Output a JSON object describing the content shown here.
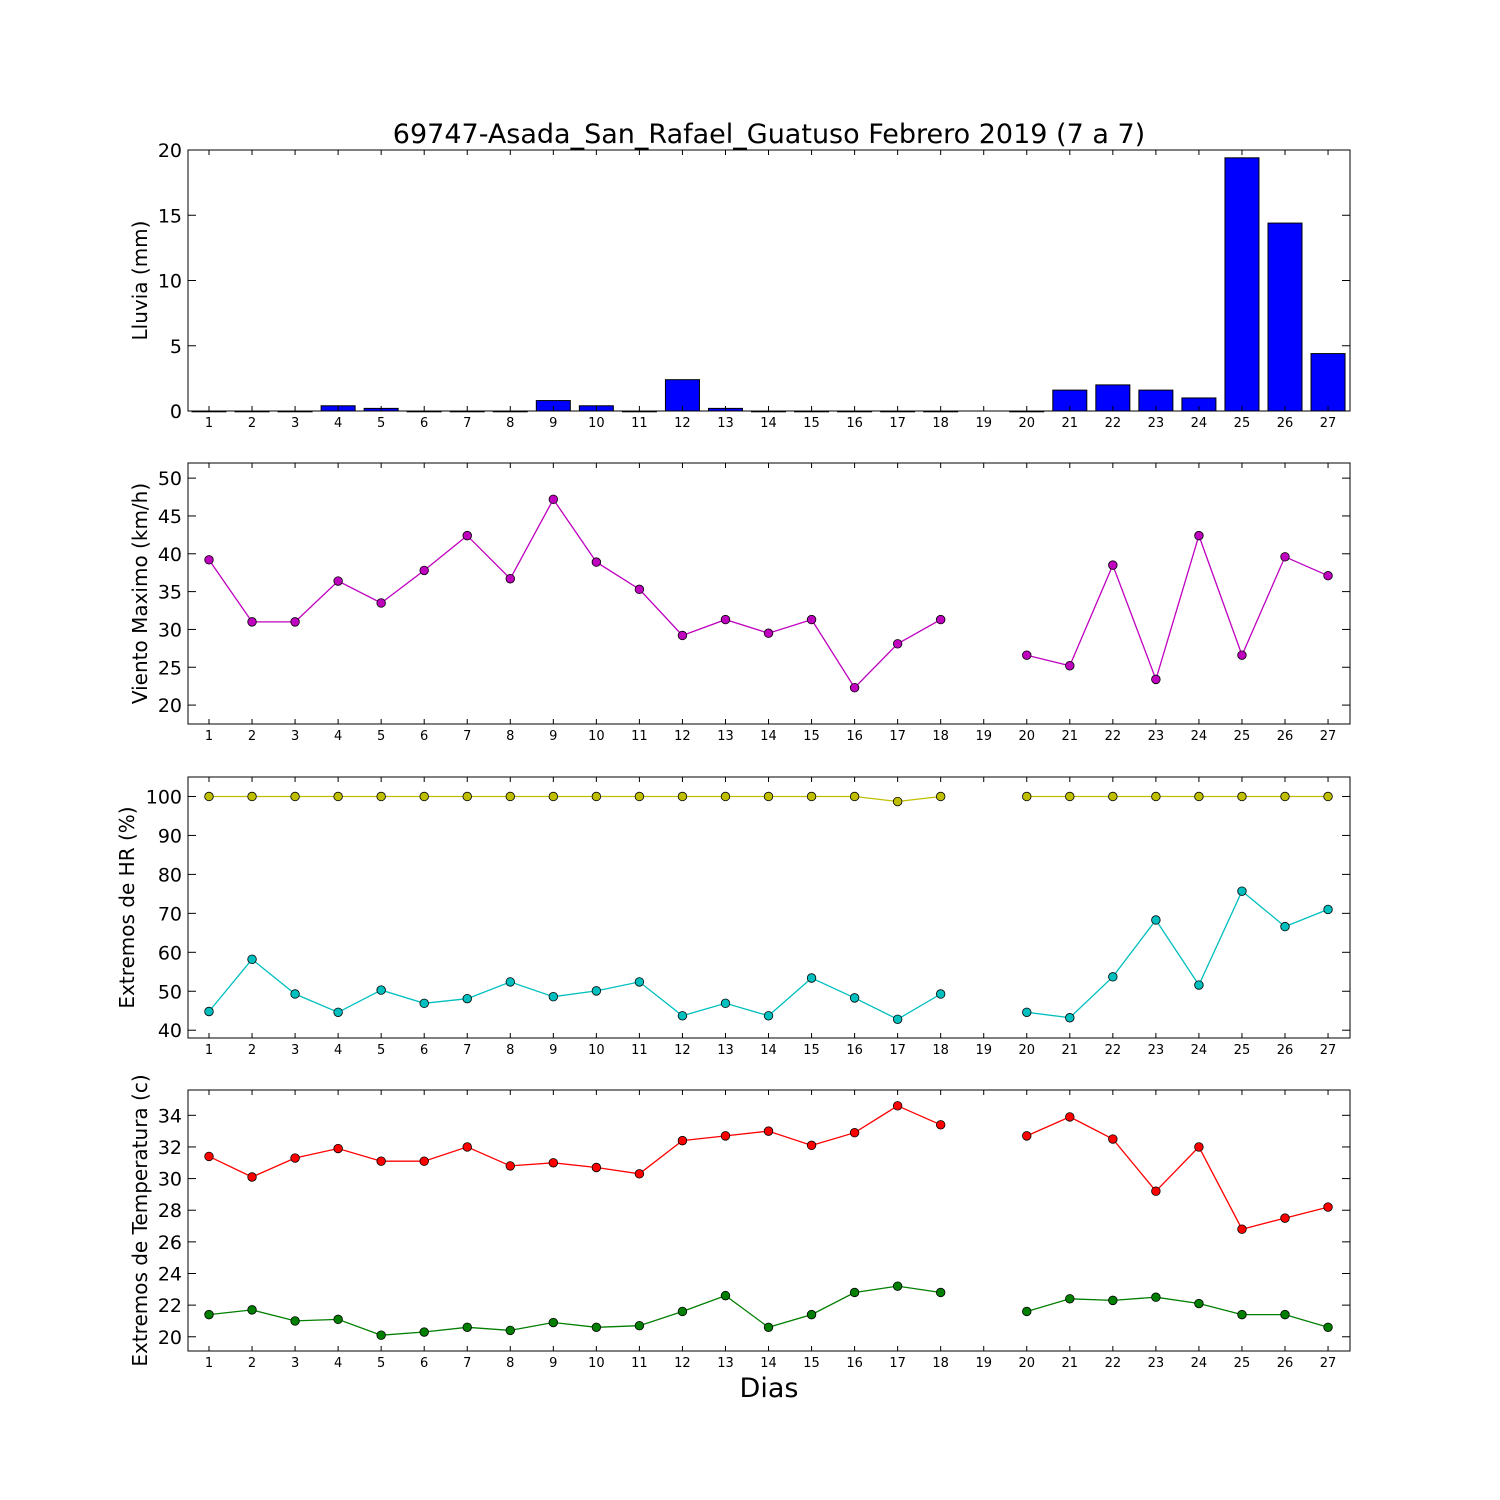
{
  "title": "69747-Asada_San_Rafael_Guatuso Febrero 2019  (7 a 7)",
  "xlabel": "Dias",
  "colors": {
    "lluvia": "#0000ff",
    "viento": "#bf00bf",
    "hr_max": "#bfbf00",
    "hr_min": "#00bfbf",
    "temp_max": "#ff0000",
    "temp_min": "#007f00"
  },
  "chart_data": [
    {
      "type": "bar",
      "ylabel": "Lluvia (mm)",
      "ylim": [
        0,
        20
      ],
      "yticks": [
        0,
        5,
        10,
        15,
        20
      ],
      "categories": [
        "1",
        "2",
        "3",
        "4",
        "5",
        "6",
        "7",
        "8",
        "9",
        "10",
        "11",
        "12",
        "13",
        "14",
        "15",
        "16",
        "17",
        "18",
        "19",
        "20",
        "21",
        "22",
        "23",
        "24",
        "25",
        "26",
        "27"
      ],
      "series": [
        {
          "values": [
            0,
            0,
            0,
            0.4,
            0.2,
            0,
            0,
            0,
            0.8,
            0.4,
            0,
            2.4,
            0.2,
            0,
            0,
            0,
            0,
            0,
            null,
            0,
            1.6,
            2.0,
            1.6,
            1.0,
            19.4,
            14.4,
            4.4
          ]
        }
      ]
    },
    {
      "type": "line",
      "ylabel": "Viento Maximo (km/h)",
      "ylim": [
        17.5,
        52
      ],
      "yticks": [
        20,
        25,
        30,
        35,
        40,
        45,
        50
      ],
      "categories": [
        "1",
        "2",
        "3",
        "4",
        "5",
        "6",
        "7",
        "8",
        "9",
        "10",
        "11",
        "12",
        "13",
        "14",
        "15",
        "16",
        "17",
        "18",
        "19",
        "20",
        "21",
        "22",
        "23",
        "24",
        "25",
        "26",
        "27"
      ],
      "series": [
        {
          "values": [
            39.2,
            31.0,
            31.0,
            36.4,
            33.5,
            37.8,
            42.4,
            36.7,
            47.2,
            38.9,
            35.3,
            29.2,
            31.3,
            29.5,
            31.3,
            22.3,
            28.1,
            31.3,
            null,
            26.6,
            25.2,
            38.5,
            23.4,
            42.4,
            26.6,
            39.6,
            37.1
          ]
        }
      ]
    },
    {
      "type": "line",
      "ylabel": "Extremos de HR (%)",
      "ylim": [
        38,
        105
      ],
      "yticks": [
        40,
        50,
        60,
        70,
        80,
        90,
        100
      ],
      "categories": [
        "1",
        "2",
        "3",
        "4",
        "5",
        "6",
        "7",
        "8",
        "9",
        "10",
        "11",
        "12",
        "13",
        "14",
        "15",
        "16",
        "17",
        "18",
        "19",
        "20",
        "21",
        "22",
        "23",
        "24",
        "25",
        "26",
        "27"
      ],
      "series": [
        {
          "values": [
            100,
            100,
            100,
            100,
            100,
            100,
            100,
            100,
            100,
            100,
            100,
            100,
            100,
            100,
            100,
            100,
            98.7,
            100,
            null,
            100,
            100,
            100,
            100,
            100,
            100,
            100,
            100
          ]
        },
        {
          "values": [
            44.8,
            58.2,
            49.3,
            44.6,
            50.3,
            46.9,
            48.1,
            52.4,
            48.6,
            50.1,
            52.4,
            43.7,
            46.9,
            43.7,
            53.4,
            48.3,
            42.8,
            49.3,
            null,
            44.6,
            43.2,
            53.7,
            68.3,
            51.6,
            75.7,
            66.6,
            71.0
          ]
        }
      ]
    },
    {
      "type": "line",
      "ylabel": "Extremos de Temperatura (c)",
      "ylim": [
        19.1,
        35.6
      ],
      "yticks": [
        20,
        22,
        24,
        26,
        28,
        30,
        32,
        34
      ],
      "categories": [
        "1",
        "2",
        "3",
        "4",
        "5",
        "6",
        "7",
        "8",
        "9",
        "10",
        "11",
        "12",
        "13",
        "14",
        "15",
        "16",
        "17",
        "18",
        "19",
        "20",
        "21",
        "22",
        "23",
        "24",
        "25",
        "26",
        "27"
      ],
      "series": [
        {
          "values": [
            31.4,
            30.1,
            31.3,
            31.9,
            31.1,
            31.1,
            32.0,
            30.8,
            31.0,
            30.7,
            30.3,
            32.4,
            32.7,
            33.0,
            32.1,
            32.9,
            34.6,
            33.4,
            null,
            32.7,
            33.9,
            32.5,
            29.2,
            32.0,
            26.8,
            27.5,
            28.2
          ]
        },
        {
          "values": [
            21.4,
            21.7,
            21.0,
            21.1,
            20.1,
            20.3,
            20.6,
            20.4,
            20.9,
            20.6,
            20.7,
            21.6,
            22.6,
            20.6,
            21.4,
            22.8,
            23.2,
            22.8,
            null,
            21.6,
            22.4,
            22.3,
            22.5,
            22.1,
            21.4,
            21.4,
            20.6
          ]
        }
      ]
    }
  ]
}
